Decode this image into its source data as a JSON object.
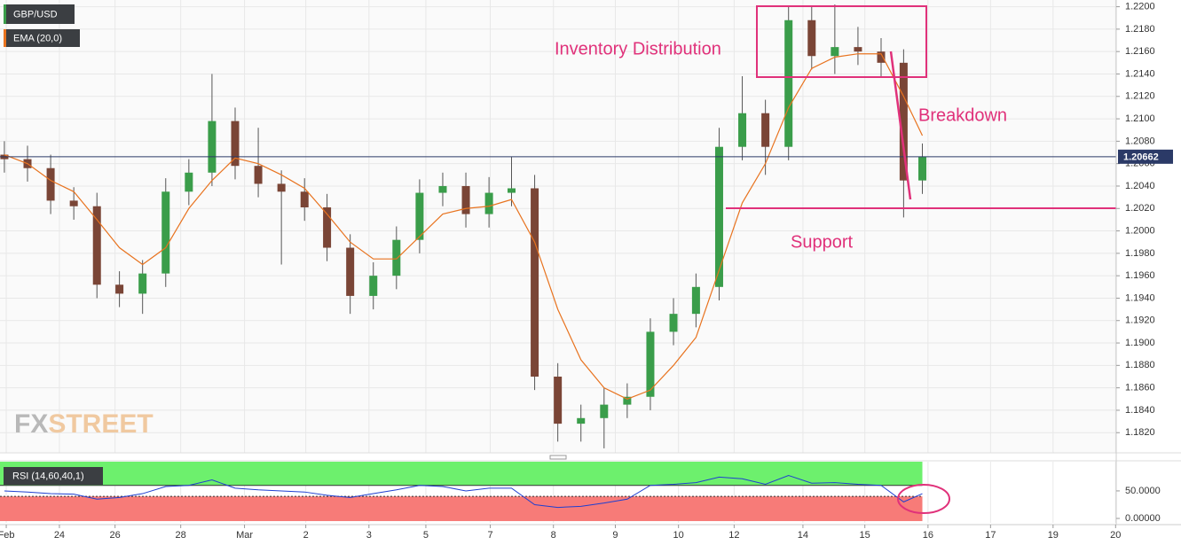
{
  "chart_data": {
    "type": "candlestick",
    "grid": true,
    "xlim": [
      0,
      17.85
    ],
    "xticks": [
      {
        "value": 0.1,
        "label": "Feb"
      },
      {
        "value": 0.95,
        "label": "24"
      },
      {
        "value": 1.84,
        "label": "26"
      },
      {
        "value": 2.89,
        "label": "28"
      },
      {
        "value": 3.91,
        "label": "Mar"
      },
      {
        "value": 4.89,
        "label": "2"
      },
      {
        "value": 5.9,
        "label": "3"
      },
      {
        "value": 6.81,
        "label": "5"
      },
      {
        "value": 7.84,
        "label": "7"
      },
      {
        "value": 8.85,
        "label": "8"
      },
      {
        "value": 9.84,
        "label": "9"
      },
      {
        "value": 10.85,
        "label": "10"
      },
      {
        "value": 11.74,
        "label": "12"
      },
      {
        "value": 12.84,
        "label": "14"
      },
      {
        "value": 13.83,
        "label": "15"
      },
      {
        "value": 14.84,
        "label": "16"
      },
      {
        "value": 15.84,
        "label": "17"
      },
      {
        "value": 16.84,
        "label": "19"
      },
      {
        "value": 17.84,
        "label": "20"
      }
    ],
    "ylim": [
      1.1802,
      1.2206
    ],
    "yticks": [
      {
        "value": 1.22,
        "label": "1.2200"
      },
      {
        "value": 1.218,
        "label": "1.2180"
      },
      {
        "value": 1.216,
        "label": "1.2160"
      },
      {
        "value": 1.214,
        "label": "1.2140"
      },
      {
        "value": 1.212,
        "label": "1.2120"
      },
      {
        "value": 1.21,
        "label": "1.2100"
      },
      {
        "value": 1.208,
        "label": "1.2080"
      },
      {
        "value": 1.206,
        "label": "1.2060"
      },
      {
        "value": 1.204,
        "label": "1.2040"
      },
      {
        "value": 1.202,
        "label": "1.2020"
      },
      {
        "value": 1.2,
        "label": "1.2000"
      },
      {
        "value": 1.198,
        "label": "1.1980"
      },
      {
        "value": 1.196,
        "label": "1.1960"
      },
      {
        "value": 1.194,
        "label": "1.1940"
      },
      {
        "value": 1.192,
        "label": "1.1920"
      },
      {
        "value": 1.19,
        "label": "1.1900"
      },
      {
        "value": 1.188,
        "label": "1.1880"
      },
      {
        "value": 1.186,
        "label": "1.1860"
      },
      {
        "value": 1.184,
        "label": "1.1840"
      },
      {
        "value": 1.182,
        "label": "1.1820"
      }
    ],
    "last_price": 1.20662,
    "x": [
      0.07,
      0.44,
      0.81,
      1.18,
      1.55,
      1.91,
      2.28,
      2.65,
      3.02,
      3.39,
      3.76,
      4.13,
      4.5,
      4.87,
      5.23,
      5.6,
      5.97,
      6.34,
      6.71,
      7.08,
      7.45,
      7.82,
      8.18,
      8.55,
      8.92,
      9.29,
      9.66,
      10.03,
      10.4,
      10.77,
      11.13,
      11.5,
      11.87,
      12.24,
      12.61,
      12.98,
      13.35,
      13.72,
      14.09,
      14.45,
      14.75
    ],
    "series": [
      {
        "name": "GBP/USD",
        "color": "#3a9d4a",
        "down_color": "#7a4536",
        "open": [
          1.2068,
          1.2064,
          1.2056,
          1.2027,
          1.2022,
          1.1952,
          1.1944,
          1.1962,
          1.2035,
          1.2052,
          1.2098,
          1.2058,
          1.2042,
          1.2035,
          1.2021,
          1.1985,
          1.1942,
          1.196,
          1.1992,
          1.2034,
          1.204,
          1.2015,
          1.2034,
          1.2038,
          1.187,
          1.1828,
          1.1833,
          1.1845,
          1.1852,
          1.191,
          1.1926,
          1.195,
          1.2075,
          1.2105,
          1.2075,
          1.2188,
          1.2156,
          1.2164,
          1.216,
          1.215,
          1.2045
        ],
        "high": [
          1.208,
          1.2076,
          1.2068,
          1.2039,
          1.2034,
          1.1964,
          1.1974,
          1.2047,
          1.2064,
          1.214,
          1.211,
          1.2092,
          1.2054,
          1.2047,
          1.2033,
          1.1997,
          1.1972,
          1.2004,
          1.2046,
          1.2052,
          1.2052,
          1.2048,
          1.2066,
          1.205,
          1.1882,
          1.1845,
          1.186,
          1.1864,
          1.1922,
          1.194,
          1.1962,
          1.2092,
          1.2138,
          1.2117,
          1.22,
          1.22,
          1.2202,
          1.2182,
          1.2172,
          1.2162,
          1.2078
        ],
        "low": [
          1.2052,
          1.2044,
          1.2015,
          1.201,
          1.194,
          1.1932,
          1.1926,
          1.195,
          1.2023,
          1.204,
          1.2046,
          1.203,
          1.197,
          1.2009,
          1.1973,
          1.1926,
          1.193,
          1.1948,
          1.198,
          1.2022,
          1.2003,
          1.2003,
          1.2022,
          1.1858,
          1.1812,
          1.1812,
          1.1806,
          1.1833,
          1.184,
          1.1898,
          1.1914,
          1.1938,
          1.2063,
          1.205,
          1.2063,
          1.2144,
          1.214,
          1.2148,
          1.2138,
          1.2012,
          1.2033
        ],
        "close": [
          1.2064,
          1.2056,
          1.2027,
          1.2022,
          1.1952,
          1.1944,
          1.1962,
          1.2035,
          1.2052,
          1.2098,
          1.2058,
          1.2042,
          1.2035,
          1.2021,
          1.1985,
          1.1942,
          1.196,
          1.1992,
          1.2034,
          1.204,
          1.2015,
          1.2034,
          1.2038,
          1.187,
          1.1828,
          1.1833,
          1.1845,
          1.1852,
          1.191,
          1.1926,
          1.195,
          1.2075,
          1.2105,
          1.2075,
          1.2188,
          1.2156,
          1.2164,
          1.216,
          1.215,
          1.2045,
          1.2066
        ]
      },
      {
        "name": "EMA (20,0)",
        "type": "line",
        "color": "#e8731f",
        "values": [
          1.2068,
          1.206,
          1.2045,
          1.2035,
          1.201,
          1.1985,
          1.197,
          1.1985,
          1.202,
          1.2045,
          1.2065,
          1.206,
          1.205,
          1.2038,
          1.2015,
          1.199,
          1.1975,
          1.1975,
          1.1995,
          1.2015,
          1.202,
          1.2022,
          1.2028,
          1.199,
          1.193,
          1.1885,
          1.186,
          1.185,
          1.1858,
          1.188,
          1.1905,
          1.1965,
          1.2025,
          1.206,
          1.211,
          1.2145,
          1.2155,
          1.2158,
          1.2158,
          1.212,
          1.2085
        ]
      }
    ],
    "annotations": [
      "Inventory Distribution",
      "Breakdown",
      "Support"
    ],
    "watermark": [
      "FX",
      "STREET"
    ],
    "rsi": {
      "name": "RSI (14,60,40,1)",
      "color": "#1f3fd0",
      "ylim": [
        -8,
        103
      ],
      "yticks": [
        {
          "value": 50,
          "label": "50.0000"
        },
        {
          "value": 0,
          "label": "0.00000"
        }
      ],
      "upper_band": 60,
      "lower_band": 40,
      "upper_color": "#6df06d",
      "lower_color": "#f77b78",
      "values": [
        50,
        48,
        45,
        44,
        35,
        38,
        45,
        58,
        60,
        70,
        55,
        52,
        50,
        48,
        42,
        38,
        45,
        52,
        60,
        58,
        50,
        55,
        55,
        25,
        20,
        22,
        28,
        35,
        60,
        62,
        65,
        75,
        72,
        62,
        78,
        64,
        65,
        62,
        60,
        30,
        45
      ]
    }
  }
}
